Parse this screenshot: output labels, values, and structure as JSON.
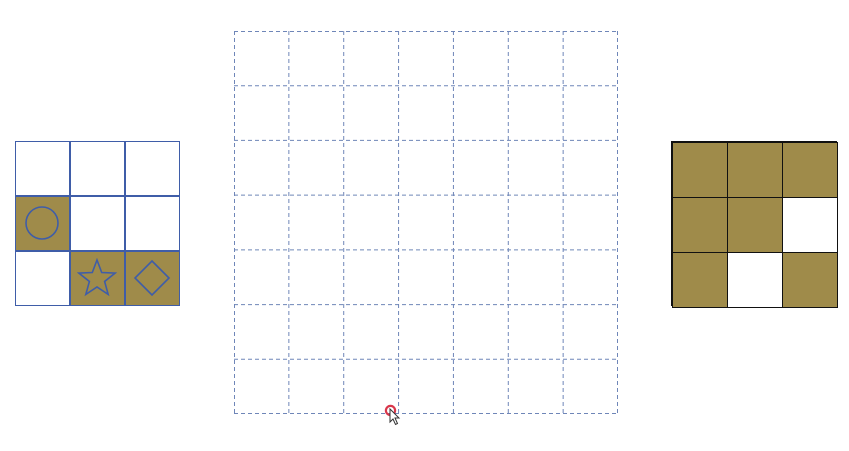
{
  "colors": {
    "fill": "#9f8b4a",
    "left_border": "#3f5da8",
    "grid_dash": "#6f86b8",
    "right_border": "#111111",
    "cursor_ring": "#d9374b"
  },
  "left_tile": {
    "rows": 3,
    "cols": 3,
    "cells": [
      {
        "filled": false,
        "icon": ""
      },
      {
        "filled": false,
        "icon": ""
      },
      {
        "filled": false,
        "icon": ""
      },
      {
        "filled": true,
        "icon": "circle-icon"
      },
      {
        "filled": false,
        "icon": ""
      },
      {
        "filled": false,
        "icon": ""
      },
      {
        "filled": false,
        "icon": ""
      },
      {
        "filled": true,
        "icon": "star-icon"
      },
      {
        "filled": true,
        "icon": "diamond-icon"
      }
    ]
  },
  "drop_grid": {
    "rows": 7,
    "cols": 7
  },
  "target_pattern": {
    "rows": 3,
    "cols": 3,
    "filled": [
      true,
      true,
      true,
      true,
      true,
      false,
      true,
      false,
      true
    ]
  }
}
